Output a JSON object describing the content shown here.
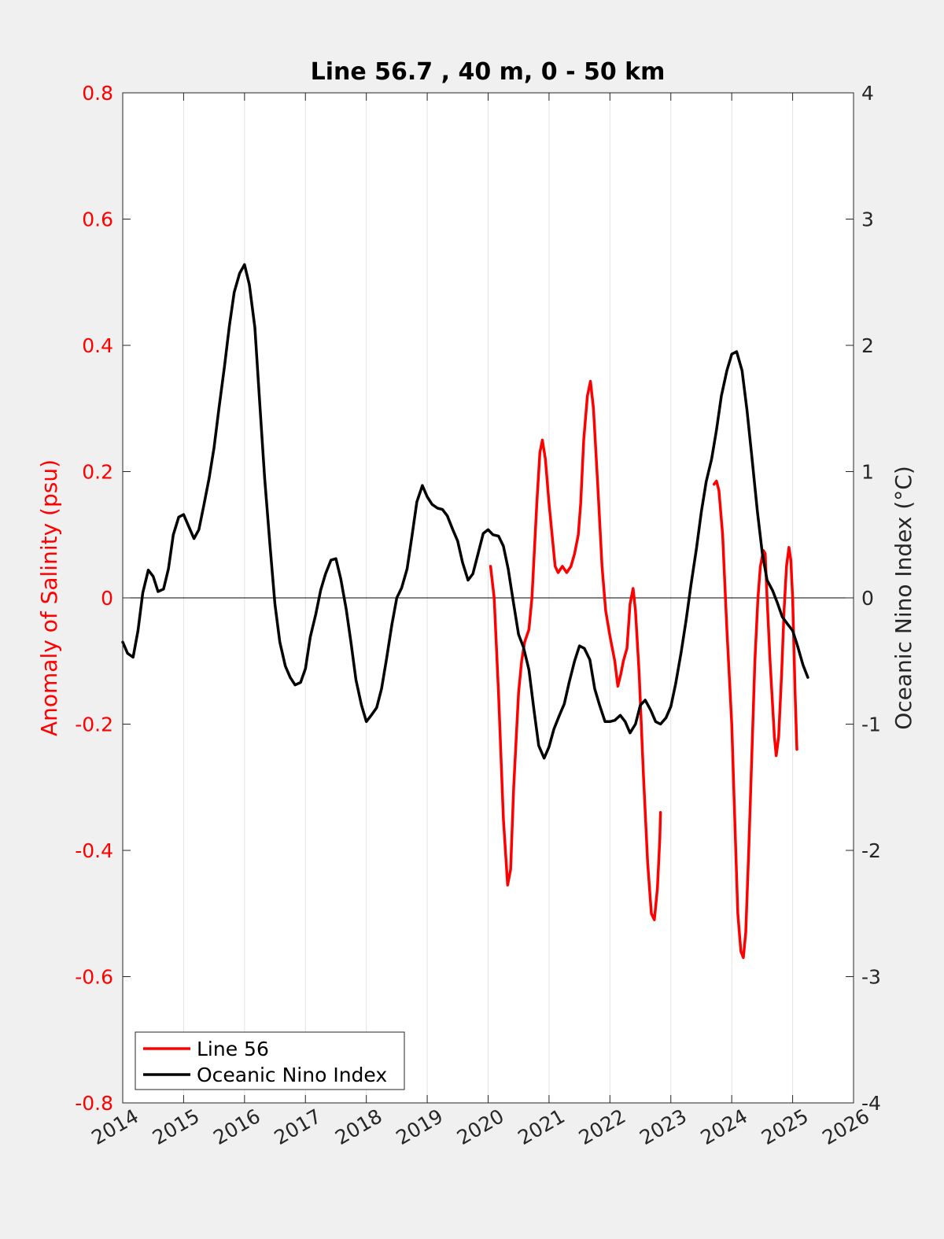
{
  "chart_data": {
    "type": "line",
    "title": "Line 56.7 , 40 m, 0 - 50 km",
    "xlim": [
      2014,
      2026
    ],
    "x_ticks": [
      2014,
      2015,
      2016,
      2017,
      2018,
      2019,
      2020,
      2021,
      2022,
      2023,
      2024,
      2025,
      2026
    ],
    "x_tick_labels": [
      "2014",
      "2015",
      "2016",
      "2017",
      "2018",
      "2019",
      "2020",
      "2021",
      "2022",
      "2023",
      "2024",
      "2025",
      "2026"
    ],
    "ylabel_left": "Anomaly of Salinity (psu)",
    "ylim_left": [
      -0.8,
      0.8
    ],
    "y_ticks_left": [
      "-0.8",
      "-0.6",
      "-0.4",
      "-0.2",
      "0",
      "0.2",
      "0.4",
      "0.6",
      "0.8"
    ],
    "ylabel_right": "Oceanic Nino Index (°C)",
    "ylim_right": [
      -4,
      4
    ],
    "y_ticks_right": [
      "-4",
      "-3",
      "-2",
      "-1",
      "0",
      "1",
      "2",
      "3",
      "4"
    ],
    "grid": "vertical",
    "zero_line": true,
    "legend_position": "bottom-left",
    "colors": {
      "line56": "#ff0000",
      "oni": "#000000",
      "axes_bg": "#ffffff",
      "figure_bg": "#f0f0f0"
    },
    "series": [
      {
        "name": "Line 56",
        "axis": "left",
        "color": "#ff0000",
        "segments": [
          [
            [
              2020.04,
              0.05
            ],
            [
              2020.1,
              0.0
            ],
            [
              2020.17,
              -0.15
            ],
            [
              2020.25,
              -0.35
            ],
            [
              2020.32,
              -0.455
            ],
            [
              2020.37,
              -0.43
            ],
            [
              2020.42,
              -0.3
            ],
            [
              2020.5,
              -0.15
            ],
            [
              2020.55,
              -0.1
            ],
            [
              2020.6,
              -0.07
            ],
            [
              2020.67,
              -0.05
            ],
            [
              2020.72,
              0.0
            ],
            [
              2020.8,
              0.15
            ],
            [
              2020.85,
              0.23
            ],
            [
              2020.89,
              0.25
            ],
            [
              2020.94,
              0.22
            ],
            [
              2021.0,
              0.15
            ],
            [
              2021.05,
              0.1
            ],
            [
              2021.1,
              0.05
            ],
            [
              2021.15,
              0.04
            ],
            [
              2021.22,
              0.05
            ],
            [
              2021.29,
              0.04
            ],
            [
              2021.36,
              0.05
            ],
            [
              2021.42,
              0.07
            ],
            [
              2021.48,
              0.1
            ],
            [
              2021.52,
              0.15
            ],
            [
              2021.57,
              0.25
            ],
            [
              2021.63,
              0.32
            ],
            [
              2021.68,
              0.343
            ],
            [
              2021.73,
              0.3
            ],
            [
              2021.8,
              0.18
            ],
            [
              2021.87,
              0.05
            ],
            [
              2021.93,
              -0.02
            ],
            [
              2022.0,
              -0.06
            ],
            [
              2022.08,
              -0.1
            ],
            [
              2022.13,
              -0.14
            ],
            [
              2022.18,
              -0.12
            ],
            [
              2022.22,
              -0.1
            ],
            [
              2022.28,
              -0.08
            ],
            [
              2022.33,
              -0.01
            ],
            [
              2022.38,
              0.015
            ],
            [
              2022.42,
              -0.02
            ],
            [
              2022.48,
              -0.12
            ],
            [
              2022.55,
              -0.28
            ],
            [
              2022.62,
              -0.42
            ],
            [
              2022.68,
              -0.5
            ],
            [
              2022.73,
              -0.51
            ],
            [
              2022.78,
              -0.46
            ],
            [
              2022.82,
              -0.38
            ],
            [
              2022.83,
              -0.34
            ]
          ],
          [
            [
              2023.71,
              0.18
            ],
            [
              2023.75,
              0.185
            ],
            [
              2023.79,
              0.17
            ],
            [
              2023.85,
              0.1
            ],
            [
              2023.92,
              -0.05
            ],
            [
              2024.0,
              -0.2
            ],
            [
              2024.05,
              -0.35
            ],
            [
              2024.1,
              -0.5
            ],
            [
              2024.15,
              -0.56
            ],
            [
              2024.19,
              -0.57
            ],
            [
              2024.23,
              -0.53
            ],
            [
              2024.28,
              -0.4
            ],
            [
              2024.33,
              -0.25
            ],
            [
              2024.38,
              -0.1
            ],
            [
              2024.43,
              0.0
            ],
            [
              2024.47,
              0.05
            ],
            [
              2024.52,
              0.075
            ],
            [
              2024.55,
              0.07
            ],
            [
              2024.58,
              0.0
            ],
            [
              2024.63,
              -0.1
            ],
            [
              2024.7,
              -0.22
            ],
            [
              2024.73,
              -0.25
            ],
            [
              2024.77,
              -0.22
            ],
            [
              2024.82,
              -0.12
            ],
            [
              2024.86,
              -0.02
            ],
            [
              2024.9,
              0.05
            ],
            [
              2024.94,
              0.08
            ],
            [
              2024.97,
              0.06
            ],
            [
              2025.0,
              0.0
            ],
            [
              2025.04,
              -0.15
            ],
            [
              2025.07,
              -0.24
            ]
          ]
        ]
      },
      {
        "name": "Oceanic Nino Index",
        "axis": "right",
        "color": "#000000",
        "segments": [
          [
            [
              2014.0,
              -0.35
            ],
            [
              2014.08,
              -0.44
            ],
            [
              2014.17,
              -0.47
            ],
            [
              2014.25,
              -0.26
            ],
            [
              2014.33,
              0.04
            ],
            [
              2014.42,
              0.22
            ],
            [
              2014.5,
              0.17
            ],
            [
              2014.58,
              0.05
            ],
            [
              2014.67,
              0.07
            ],
            [
              2014.75,
              0.23
            ],
            [
              2014.83,
              0.5
            ],
            [
              2014.92,
              0.64
            ],
            [
              2015.0,
              0.66
            ],
            [
              2015.08,
              0.57
            ],
            [
              2015.17,
              0.47
            ],
            [
              2015.25,
              0.54
            ],
            [
              2015.33,
              0.73
            ],
            [
              2015.42,
              0.95
            ],
            [
              2015.5,
              1.19
            ],
            [
              2015.58,
              1.5
            ],
            [
              2015.67,
              1.83
            ],
            [
              2015.75,
              2.15
            ],
            [
              2015.83,
              2.42
            ],
            [
              2015.92,
              2.57
            ],
            [
              2016.0,
              2.64
            ],
            [
              2016.08,
              2.48
            ],
            [
              2016.17,
              2.14
            ],
            [
              2016.25,
              1.54
            ],
            [
              2016.33,
              0.95
            ],
            [
              2016.42,
              0.41
            ],
            [
              2016.5,
              -0.05
            ],
            [
              2016.58,
              -0.35
            ],
            [
              2016.67,
              -0.54
            ],
            [
              2016.75,
              -0.63
            ],
            [
              2016.83,
              -0.69
            ],
            [
              2016.92,
              -0.67
            ],
            [
              2017.0,
              -0.56
            ],
            [
              2017.08,
              -0.31
            ],
            [
              2017.17,
              -0.13
            ],
            [
              2017.25,
              0.06
            ],
            [
              2017.33,
              0.19
            ],
            [
              2017.42,
              0.3
            ],
            [
              2017.5,
              0.31
            ],
            [
              2017.58,
              0.15
            ],
            [
              2017.67,
              -0.09
            ],
            [
              2017.75,
              -0.36
            ],
            [
              2017.83,
              -0.65
            ],
            [
              2017.92,
              -0.85
            ],
            [
              2018.0,
              -0.98
            ],
            [
              2018.08,
              -0.93
            ],
            [
              2018.17,
              -0.87
            ],
            [
              2018.25,
              -0.72
            ],
            [
              2018.33,
              -0.49
            ],
            [
              2018.42,
              -0.21
            ],
            [
              2018.5,
              0.0
            ],
            [
              2018.58,
              0.08
            ],
            [
              2018.67,
              0.23
            ],
            [
              2018.75,
              0.49
            ],
            [
              2018.83,
              0.76
            ],
            [
              2018.92,
              0.89
            ],
            [
              2019.0,
              0.8
            ],
            [
              2019.08,
              0.74
            ],
            [
              2019.17,
              0.71
            ],
            [
              2019.25,
              0.7
            ],
            [
              2019.33,
              0.65
            ],
            [
              2019.42,
              0.54
            ],
            [
              2019.5,
              0.45
            ],
            [
              2019.58,
              0.28
            ],
            [
              2019.67,
              0.14
            ],
            [
              2019.75,
              0.19
            ],
            [
              2019.83,
              0.34
            ],
            [
              2019.92,
              0.51
            ],
            [
              2020.0,
              0.54
            ],
            [
              2020.08,
              0.5
            ],
            [
              2020.17,
              0.49
            ],
            [
              2020.25,
              0.41
            ],
            [
              2020.33,
              0.23
            ],
            [
              2020.42,
              -0.05
            ],
            [
              2020.5,
              -0.29
            ],
            [
              2020.58,
              -0.39
            ],
            [
              2020.67,
              -0.57
            ],
            [
              2020.75,
              -0.88
            ],
            [
              2020.83,
              -1.17
            ],
            [
              2020.92,
              -1.27
            ],
            [
              2021.0,
              -1.18
            ],
            [
              2021.08,
              -1.04
            ],
            [
              2021.17,
              -0.93
            ],
            [
              2021.25,
              -0.84
            ],
            [
              2021.33,
              -0.67
            ],
            [
              2021.42,
              -0.5
            ],
            [
              2021.5,
              -0.38
            ],
            [
              2021.58,
              -0.4
            ],
            [
              2021.67,
              -0.49
            ],
            [
              2021.75,
              -0.72
            ],
            [
              2021.83,
              -0.85
            ],
            [
              2021.92,
              -0.98
            ],
            [
              2022.0,
              -0.98
            ],
            [
              2022.08,
              -0.97
            ],
            [
              2022.17,
              -0.93
            ],
            [
              2022.25,
              -0.98
            ],
            [
              2022.33,
              -1.07
            ],
            [
              2022.42,
              -1.0
            ],
            [
              2022.5,
              -0.85
            ],
            [
              2022.58,
              -0.81
            ],
            [
              2022.67,
              -0.89
            ],
            [
              2022.75,
              -0.98
            ],
            [
              2022.83,
              -1.0
            ],
            [
              2022.92,
              -0.95
            ],
            [
              2023.0,
              -0.86
            ],
            [
              2023.08,
              -0.68
            ],
            [
              2023.17,
              -0.43
            ],
            [
              2023.25,
              -0.18
            ],
            [
              2023.33,
              0.1
            ],
            [
              2023.42,
              0.39
            ],
            [
              2023.5,
              0.68
            ],
            [
              2023.58,
              0.92
            ],
            [
              2023.67,
              1.1
            ],
            [
              2023.75,
              1.33
            ],
            [
              2023.83,
              1.6
            ],
            [
              2023.92,
              1.8
            ],
            [
              2024.0,
              1.93
            ],
            [
              2024.08,
              1.95
            ],
            [
              2024.17,
              1.8
            ],
            [
              2024.25,
              1.49
            ],
            [
              2024.33,
              1.12
            ],
            [
              2024.42,
              0.69
            ],
            [
              2024.5,
              0.36
            ],
            [
              2024.58,
              0.14
            ],
            [
              2024.67,
              0.06
            ],
            [
              2024.75,
              -0.04
            ],
            [
              2024.83,
              -0.15
            ],
            [
              2024.92,
              -0.21
            ],
            [
              2025.0,
              -0.26
            ],
            [
              2025.08,
              -0.38
            ],
            [
              2025.17,
              -0.53
            ],
            [
              2025.25,
              -0.63
            ]
          ]
        ]
      }
    ]
  }
}
